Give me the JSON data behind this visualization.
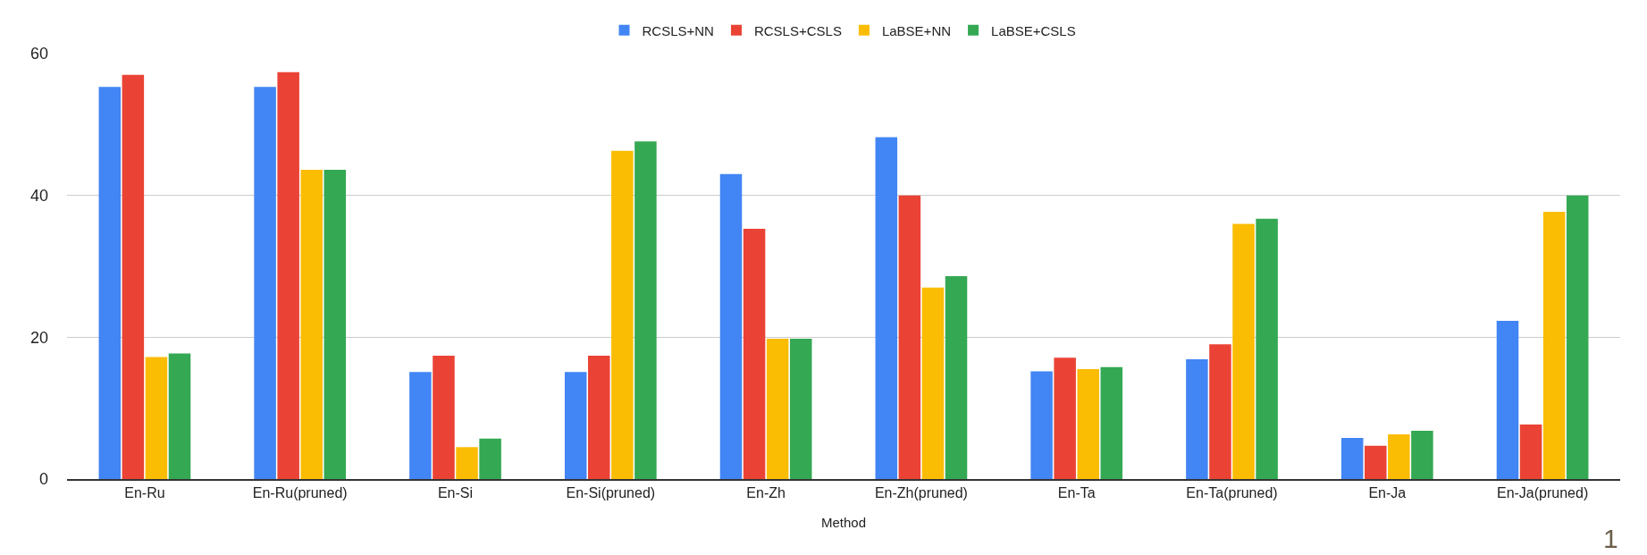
{
  "chart_data": {
    "type": "bar",
    "xlabel": "Method",
    "categories": [
      "En-Ru",
      "En-Ru(pruned)",
      "En-Si",
      "En-Si(pruned)",
      "En-Zh",
      "En-Zh(pruned)",
      "En-Ta",
      "En-Ta(pruned)",
      "En-Ja",
      "En-Ja(pruned)"
    ],
    "series": [
      {
        "name": "RCSLS+NN",
        "color": "#4285f4",
        "values": [
          55.3,
          55.3,
          15.1,
          15.1,
          43.0,
          48.2,
          15.2,
          16.9,
          5.8,
          22.3
        ]
      },
      {
        "name": "RCSLS+CSLS",
        "color": "#ea4335",
        "values": [
          57.0,
          57.4,
          17.4,
          17.4,
          35.3,
          40.0,
          17.1,
          19.0,
          4.7,
          7.7
        ]
      },
      {
        "name": "LaBSE+NN",
        "color": "#fbbc04",
        "values": [
          17.2,
          43.6,
          4.5,
          46.3,
          19.8,
          27.0,
          15.5,
          36.0,
          6.3,
          37.7
        ]
      },
      {
        "name": "LaBSE+CSLS",
        "color": "#34a853",
        "values": [
          17.7,
          43.6,
          5.7,
          47.6,
          19.8,
          28.6,
          15.8,
          36.7,
          6.8,
          40.0
        ]
      }
    ],
    "ylim": [
      0,
      60
    ],
    "yticks": [
      0,
      20,
      40,
      60
    ],
    "grid": "y",
    "legend": "top",
    "annotations": [
      "1"
    ]
  }
}
